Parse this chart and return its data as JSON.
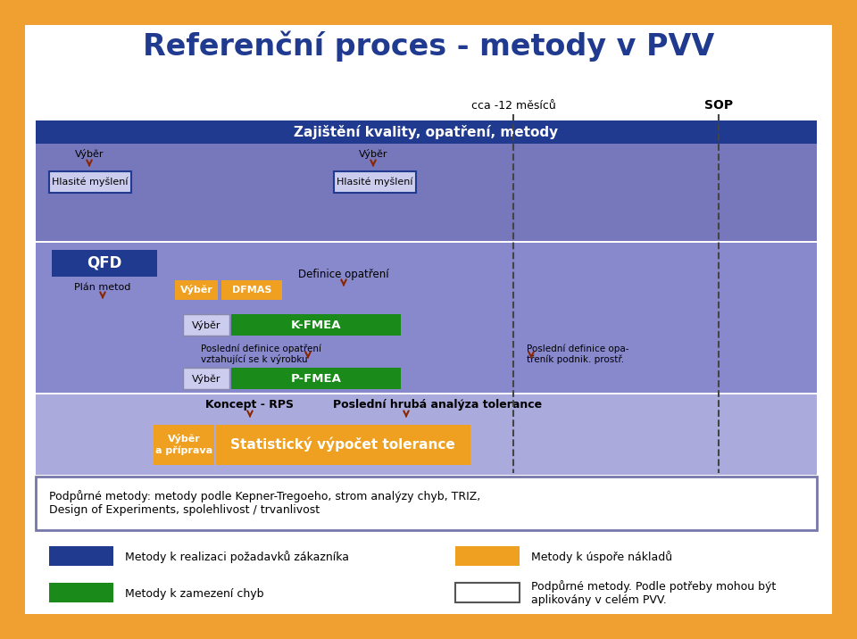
{
  "title": "Referenční proces - metody v PVV",
  "bg_outer": "#F0A030",
  "title_color": "#1F3A8F",
  "title_fontsize": 24,
  "color_blue_dark": "#1F3A8F",
  "color_blue_band1": "#7777BB",
  "color_blue_band2": "#8888CC",
  "color_blue_band3": "#AAAADD",
  "color_orange": "#F0A020",
  "color_green": "#1A8A1A",
  "color_box_light": "#CCCCEE",
  "color_white": "#FFFFFF",
  "band1_label": "Zajištění kvality, opatření, metody",
  "marker_cca": "cca -12 měsíců",
  "marker_sop": "SOP",
  "label_vybr1": "Výběr",
  "label_hlasitemysleni1": "Hlasité myšlení",
  "label_vybr2": "Výběr",
  "label_hlasitemysleni2": "Hlasité myšlení",
  "label_qfd": "QFD",
  "label_plan_metod": "Plán metod",
  "label_vybr3": "Výběr",
  "label_dfmas": "DFMAS",
  "label_definice": "Definice opatření",
  "label_vybr4": "Výběr",
  "label_kfmea": "K-FMEA",
  "label_posln_def1": "Poslední definice opatření\nvztahující se k výrobku",
  "label_posln_def2": "Poslední definice opa-\ntřeník podnik. prostř.",
  "label_vybr5": "Výběr",
  "label_pfmea": "P-FMEA",
  "label_koncept": "Koncept - RPS",
  "label_posl_hruba": "Poslední hrubá analýza tolerance",
  "label_vybr_priprava": "Výběr\na příprava",
  "label_statisticky": "Statistický výpočet tolerance",
  "label_podpurne": "Podpůrné metody: metody podle Kepner-Tregoeho, strom analýzy chyb, TRIZ,\nDesign of Experiments, spolehlivost / trvanlivost",
  "legend_blue_label": "Metody k realizaci požadavků zákazníka",
  "legend_orange_label": "Metody k úspoře nákladů",
  "legend_green_label": "Metody k zamezení chyb",
  "legend_white_label": "Podpůrné metody. Podle potřeby mohou být\naplikovány v celém PVV."
}
